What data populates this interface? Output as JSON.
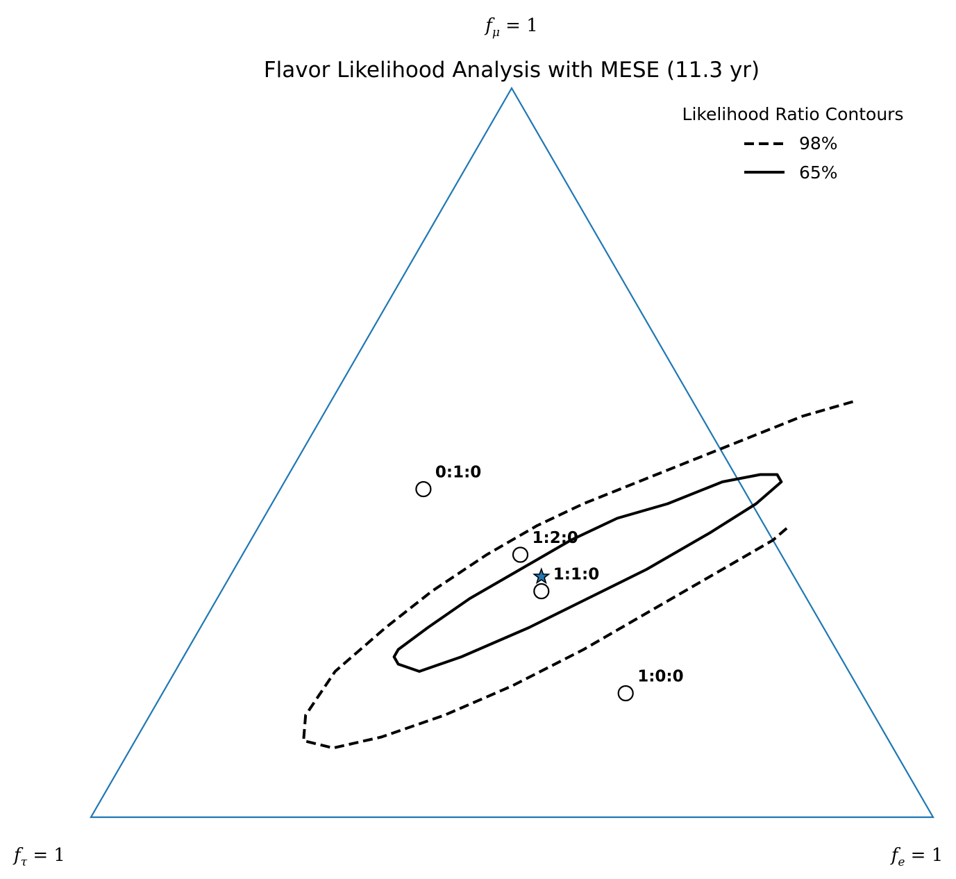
{
  "chart_data": {
    "type": "ternary-contour",
    "title": "Flavor Likelihood Analysis with MESE (11.3 yr)",
    "corner_labels": {
      "top": {
        "var": "f",
        "sub": "μ",
        "rest": " = 1"
      },
      "left": {
        "var": "f",
        "sub": "τ",
        "rest": " = 1"
      },
      "right": {
        "var": "f",
        "sub": "e",
        "rest": " = 1"
      }
    },
    "colors": {
      "triangle": "#1f77b4",
      "contour": "#000000",
      "best_fit": "#1f77b4"
    },
    "legend": {
      "title": "Likelihood Ratio Contours",
      "placement": "top-right",
      "entries": [
        {
          "label": "98%",
          "style": "dashed"
        },
        {
          "label": "65%",
          "style": "solid"
        }
      ]
    },
    "best_fit": {
      "f_e": 0.37,
      "f_mu": 0.33,
      "f_tau": 0.3,
      "marker": "star"
    },
    "reference_points": [
      {
        "label": "0:1:0",
        "f_e": 0.17,
        "f_mu": 0.45,
        "f_tau": 0.38
      },
      {
        "label": "1:2:0",
        "f_e": 0.33,
        "f_mu": 0.36,
        "f_tau": 0.31
      },
      {
        "label": "1:1:0",
        "f_e": 0.38,
        "f_mu": 0.31,
        "f_tau": 0.31
      },
      {
        "label": "1:0:0",
        "f_e": 0.55,
        "f_mu": 0.17,
        "f_tau": 0.28
      }
    ],
    "contours": [
      {
        "level": "98%",
        "style": "dashed",
        "closed": false,
        "points": [
          [
            0.62,
            0.57
          ],
          [
            0.57,
            0.55
          ],
          [
            0.52,
            0.52
          ],
          [
            0.47,
            0.49
          ],
          [
            0.42,
            0.46
          ],
          [
            0.37,
            0.43
          ],
          [
            0.33,
            0.4
          ],
          [
            0.29,
            0.36
          ],
          [
            0.25,
            0.31
          ],
          [
            0.22,
            0.26
          ],
          [
            0.19,
            0.2
          ],
          [
            0.185,
            0.14
          ],
          [
            0.2,
            0.105
          ],
          [
            0.24,
            0.095
          ],
          [
            0.29,
            0.11
          ],
          [
            0.35,
            0.14
          ],
          [
            0.41,
            0.18
          ],
          [
            0.47,
            0.23
          ],
          [
            0.53,
            0.29
          ],
          [
            0.58,
            0.34
          ],
          [
            0.62,
            0.38
          ],
          [
            0.63,
            0.4
          ]
        ]
      },
      {
        "level": "65%",
        "style": "solid",
        "closed": true,
        "points": [
          [
            0.58,
            0.47
          ],
          [
            0.56,
            0.47
          ],
          [
            0.52,
            0.46
          ],
          [
            0.47,
            0.43
          ],
          [
            0.42,
            0.41
          ],
          [
            0.38,
            0.38
          ],
          [
            0.34,
            0.34
          ],
          [
            0.3,
            0.3
          ],
          [
            0.27,
            0.26
          ],
          [
            0.25,
            0.23
          ],
          [
            0.25,
            0.22
          ],
          [
            0.26,
            0.21
          ],
          [
            0.29,
            0.2
          ],
          [
            0.33,
            0.22
          ],
          [
            0.39,
            0.26
          ],
          [
            0.44,
            0.3
          ],
          [
            0.49,
            0.34
          ],
          [
            0.54,
            0.39
          ],
          [
            0.575,
            0.43
          ],
          [
            0.59,
            0.46
          ]
        ]
      }
    ]
  }
}
